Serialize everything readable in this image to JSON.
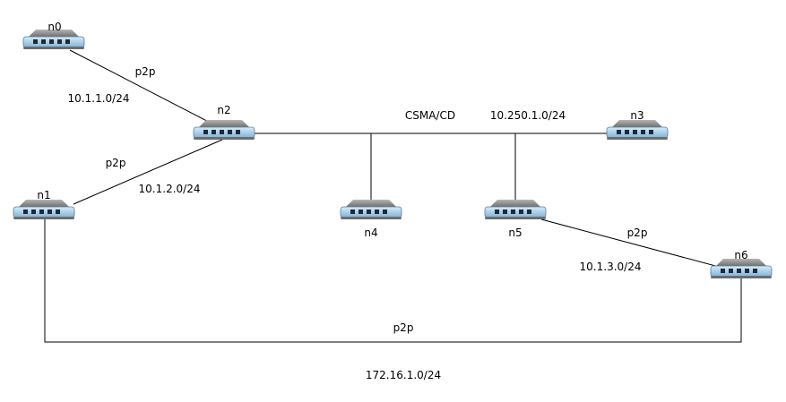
{
  "nodes": {
    "n0": {
      "label": "n0"
    },
    "n1": {
      "label": "n1"
    },
    "n2": {
      "label": "n2"
    },
    "n3": {
      "label": "n3"
    },
    "n4": {
      "label": "n4"
    },
    "n5": {
      "label": "n5"
    },
    "n6": {
      "label": "n6"
    }
  },
  "links": {
    "n0_n2": {
      "type": "p2p",
      "subnet": "10.1.1.0/24"
    },
    "n1_n2": {
      "type": "p2p",
      "subnet": "10.1.2.0/24"
    },
    "csma": {
      "type": "CSMA/CD",
      "subnet": "10.250.1.0/24"
    },
    "n5_n6": {
      "type": "p2p",
      "subnet": "10.1.3.0/24"
    },
    "n1_n6": {
      "type": "p2p",
      "subnet": "172.16.1.0/24"
    }
  },
  "colors": {
    "device_top": "#8a8a8a",
    "device_front": "#9fc9e8",
    "device_port": "#1c2a3a",
    "link": "#000000"
  },
  "icons": {
    "node": "network-switch-icon"
  }
}
